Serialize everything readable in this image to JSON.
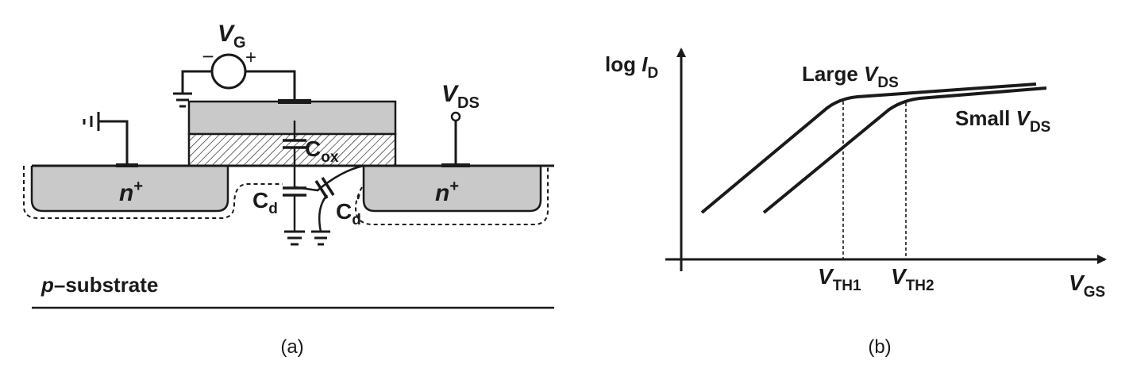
{
  "figure_a": {
    "caption": "(a)",
    "vg": {
      "main": "V",
      "sub": "G"
    },
    "source_minus": "−",
    "source_plus": "+",
    "vds": {
      "main": "V",
      "sub": "DS"
    },
    "cox": {
      "main": "C",
      "sub": "ox"
    },
    "cd": {
      "main": "C",
      "sub": "d"
    },
    "cd_prime": {
      "main": "C",
      "sub": "d",
      "prime": "′"
    },
    "n_left": {
      "main": "n",
      "sup": "+"
    },
    "n_right": {
      "main": "n",
      "sup": "+"
    },
    "substrate": {
      "italic": "p",
      "rest": "–substrate"
    }
  },
  "figure_b": {
    "caption": "(b)",
    "y_axis": {
      "pre": "log ",
      "main": "I",
      "sub": "D"
    },
    "x_axis": {
      "main": "V",
      "sub": "GS"
    },
    "vth1": {
      "main": "V",
      "sub": "TH1"
    },
    "vth2": {
      "main": "V",
      "sub": "TH2"
    },
    "large_curve": {
      "pre": "Large ",
      "main": "V",
      "sub": "DS"
    },
    "small_curve": {
      "pre": "Small ",
      "main": "V",
      "sub": "DS"
    }
  },
  "colors": {
    "ink": "#1a1a1a",
    "gate_fill": "#c9c9c9",
    "well_fill": "#c9c9c9"
  }
}
